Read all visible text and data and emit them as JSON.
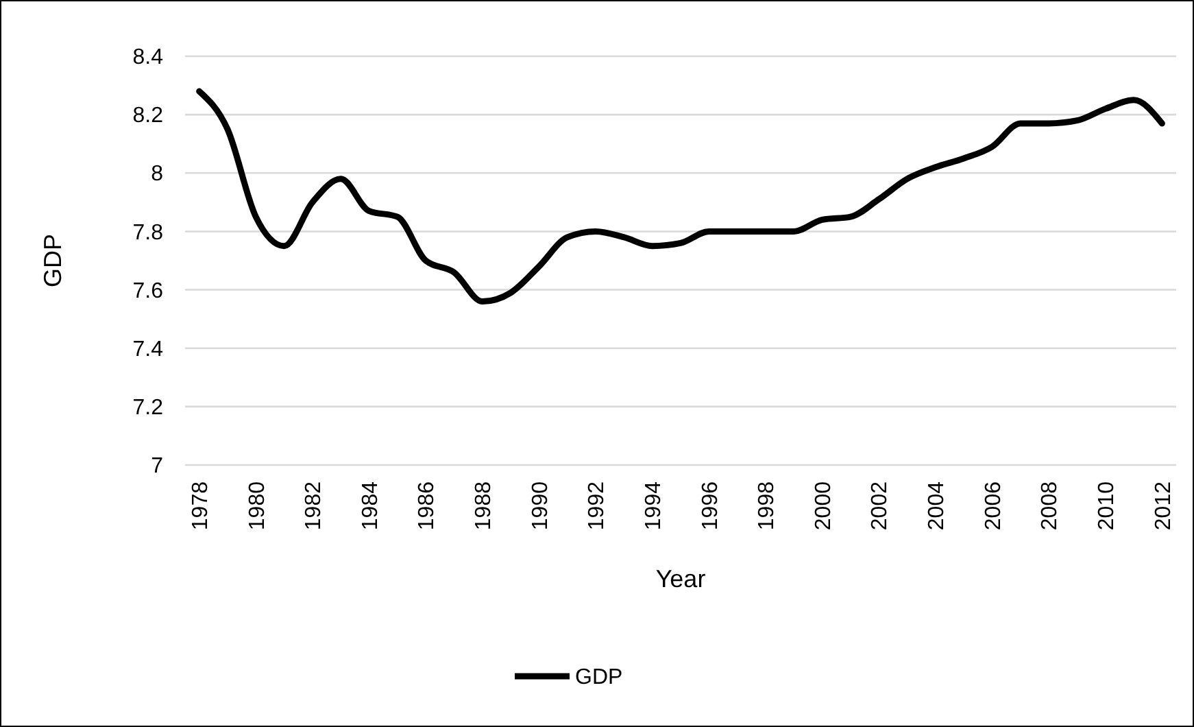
{
  "chart_data": {
    "type": "line",
    "xlabel": "Year",
    "ylabel": "GDP",
    "categories": [
      "1978",
      null,
      "1980",
      null,
      "1982",
      null,
      "1984",
      null,
      "1986",
      null,
      "1988",
      null,
      "1990",
      null,
      "1992",
      null,
      "1994",
      null,
      "1996",
      null,
      "1998",
      null,
      "2000",
      null,
      "2002",
      null,
      "2004",
      null,
      "2006",
      null,
      "2008",
      null,
      "2010",
      null,
      "2012"
    ],
    "series": [
      {
        "name": "GDP",
        "color": "#000000",
        "values": [
          8.28,
          8.15,
          7.85,
          7.75,
          7.9,
          7.98,
          7.87,
          7.85,
          7.7,
          7.66,
          7.56,
          7.59,
          7.68,
          7.78,
          7.8,
          7.78,
          7.75,
          7.76,
          7.8,
          7.8,
          7.8,
          7.8,
          7.84,
          7.85,
          7.91,
          7.98,
          8.02,
          8.05,
          8.09,
          8.17,
          8.17,
          8.18,
          8.22,
          8.25,
          8.17
        ]
      }
    ],
    "ylim": [
      7,
      8.4
    ],
    "yticks": [
      7,
      {
        "value": 7.2,
        "label": "7.2"
      },
      {
        "value": 7.4,
        "label": "7.4"
      },
      {
        "value": 7.6,
        "label": "7.6"
      },
      {
        "value": 7.8,
        "label": "7.8"
      },
      8,
      {
        "value": 8.2,
        "label": "8.2"
      },
      {
        "value": 8.4,
        "label": "8.4"
      }
    ],
    "grid": "y",
    "legend": "bottom",
    "marker": "none",
    "line_style": "solid"
  }
}
